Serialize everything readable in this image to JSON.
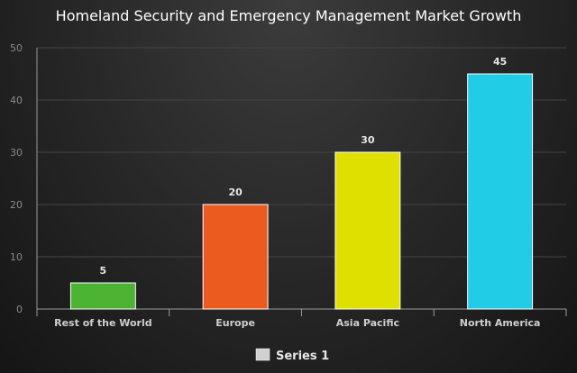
{
  "chart_data": {
    "type": "bar",
    "title": "Homeland Security and Emergency Management Market Growth",
    "categories": [
      "Rest of the World",
      "Europe",
      "Asia Pacific",
      "North America"
    ],
    "series": [
      {
        "name": "Series 1",
        "values": [
          5,
          20,
          30,
          45
        ]
      }
    ],
    "bar_colors": [
      "#4db332",
      "#eb5a1e",
      "#e0e000",
      "#21cce6"
    ],
    "legend_color": "#d0d0d0",
    "ylim": [
      0,
      50
    ],
    "yticks": [
      0,
      10,
      20,
      30,
      40,
      50
    ],
    "grid": true,
    "legend_position": "bottom"
  }
}
